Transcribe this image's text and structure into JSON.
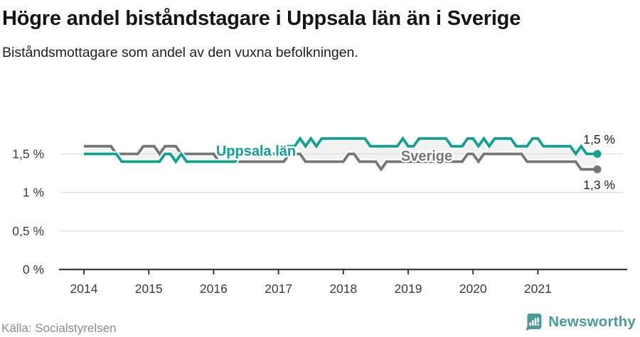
{
  "header": {
    "title": "Högre andel biståndstagare i Uppsala län än i Sverige",
    "subtitle": "Biståndsmottagare som andel av den vuxna befolkningen."
  },
  "chart_data": {
    "type": "line",
    "title": "Högre andel biståndstagare i Uppsala län än i Sverige",
    "subtitle": "Biståndsmottagare som andel av den vuxna befolkningen.",
    "unit": "%",
    "frequency": "monthly",
    "x_start": "2014-01",
    "x_end": "2021-12",
    "x_tick_labels": [
      "2014",
      "2015",
      "2016",
      "2017",
      "2018",
      "2019",
      "2020",
      "2021"
    ],
    "y_ticks": [
      {
        "value": 0,
        "label": "0 %"
      },
      {
        "value": 0.5,
        "label": "0,5 %"
      },
      {
        "value": 1,
        "label": "1 %"
      },
      {
        "value": 1.5,
        "label": "1,5 %"
      }
    ],
    "y_range": [
      0,
      1.75
    ],
    "grid": "horizontal",
    "legend_position": "inline-labels",
    "series": [
      {
        "name": "Uppsala län",
        "color": "#0fa294",
        "end_label": "1,5 %",
        "end_value": 1.5,
        "values": [
          1.5,
          1.5,
          1.5,
          1.5,
          1.5,
          1.5,
          1.5,
          1.4,
          1.4,
          1.4,
          1.4,
          1.4,
          1.4,
          1.4,
          1.4,
          1.5,
          1.5,
          1.4,
          1.5,
          1.4,
          1.4,
          1.4,
          1.4,
          1.4,
          1.4,
          1.4,
          1.4,
          1.4,
          1.4,
          1.5,
          1.5,
          1.5,
          1.5,
          1.5,
          1.5,
          1.5,
          1.5,
          1.6,
          1.6,
          1.6,
          1.7,
          1.6,
          1.7,
          1.6,
          1.7,
          1.7,
          1.7,
          1.7,
          1.7,
          1.7,
          1.7,
          1.7,
          1.7,
          1.6,
          1.6,
          1.6,
          1.6,
          1.6,
          1.6,
          1.7,
          1.6,
          1.6,
          1.7,
          1.7,
          1.7,
          1.7,
          1.7,
          1.7,
          1.6,
          1.6,
          1.6,
          1.7,
          1.7,
          1.6,
          1.7,
          1.6,
          1.7,
          1.7,
          1.7,
          1.7,
          1.6,
          1.6,
          1.6,
          1.7,
          1.7,
          1.6,
          1.6,
          1.6,
          1.6,
          1.6,
          1.6,
          1.5,
          1.6,
          1.5,
          1.5,
          1.5
        ]
      },
      {
        "name": "Sverige",
        "color": "#76767a",
        "end_label": "1,3 %",
        "end_value": 1.3,
        "values": [
          1.6,
          1.6,
          1.6,
          1.6,
          1.6,
          1.6,
          1.5,
          1.5,
          1.5,
          1.5,
          1.5,
          1.6,
          1.6,
          1.6,
          1.5,
          1.6,
          1.6,
          1.6,
          1.5,
          1.5,
          1.5,
          1.5,
          1.5,
          1.5,
          1.5,
          1.4,
          1.4,
          1.4,
          1.4,
          1.4,
          1.4,
          1.4,
          1.4,
          1.4,
          1.4,
          1.4,
          1.4,
          1.4,
          1.5,
          1.5,
          1.5,
          1.4,
          1.4,
          1.4,
          1.4,
          1.4,
          1.4,
          1.4,
          1.4,
          1.5,
          1.5,
          1.4,
          1.4,
          1.4,
          1.4,
          1.3,
          1.4,
          1.4,
          1.4,
          1.4,
          1.4,
          1.4,
          1.4,
          1.4,
          1.4,
          1.4,
          1.4,
          1.4,
          1.4,
          1.4,
          1.4,
          1.5,
          1.5,
          1.4,
          1.5,
          1.5,
          1.5,
          1.5,
          1.5,
          1.5,
          1.5,
          1.5,
          1.4,
          1.4,
          1.4,
          1.4,
          1.4,
          1.4,
          1.4,
          1.4,
          1.4,
          1.4,
          1.3,
          1.3,
          1.3,
          1.3
        ]
      }
    ],
    "colors": {
      "band_between_series": "#f2f2f2",
      "gridline": "#dddddd",
      "axis": "#3a3a3a",
      "tick_label": "#3c3c3c",
      "end_label_text": "#1f1f1f"
    }
  },
  "footer": {
    "source": "Källa: Socialstyrelsen",
    "brand": "Newsworthy"
  }
}
